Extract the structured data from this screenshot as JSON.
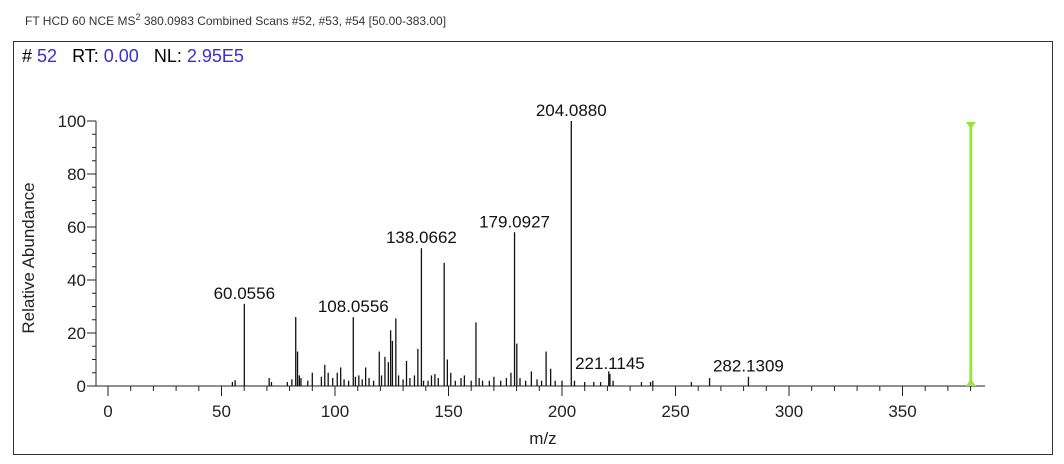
{
  "header": {
    "prefix": "FT HCD 60 NCE MS",
    "superscript": "2",
    "suffix": " 380.0983 Combined Scans #52, #53, #54 [50.00-383.00]"
  },
  "info": {
    "scan_label": "#",
    "scan_value": "52",
    "rt_label": "RT:",
    "rt_value": "0.00",
    "nl_label": "NL:",
    "nl_value": "2.95E5"
  },
  "chart_data": {
    "type": "bar",
    "xlabel": "m/z",
    "ylabel": "Relative Abundance",
    "xlim": [
      -5,
      385
    ],
    "ylim": [
      0,
      100
    ],
    "x_ticks": [
      0,
      50,
      100,
      150,
      200,
      250,
      300,
      350
    ],
    "y_ticks": [
      0,
      20,
      40,
      60,
      80,
      100
    ],
    "precursor_marker": {
      "mz": 380.0983,
      "color": "#99e63a"
    },
    "peaks": [
      {
        "mz": 54.8,
        "intensity": 1.5
      },
      {
        "mz": 56.0,
        "intensity": 2.2
      },
      {
        "mz": 60.0556,
        "intensity": 31,
        "label": "60.0556"
      },
      {
        "mz": 71.0,
        "intensity": 3
      },
      {
        "mz": 72.0,
        "intensity": 1.5
      },
      {
        "mz": 79.0,
        "intensity": 1.5
      },
      {
        "mz": 81.0,
        "intensity": 2.5
      },
      {
        "mz": 82.7,
        "intensity": 26
      },
      {
        "mz": 83.5,
        "intensity": 13
      },
      {
        "mz": 84.3,
        "intensity": 4
      },
      {
        "mz": 85.0,
        "intensity": 3
      },
      {
        "mz": 88.0,
        "intensity": 2
      },
      {
        "mz": 90.0,
        "intensity": 5
      },
      {
        "mz": 94.0,
        "intensity": 3.5
      },
      {
        "mz": 95.5,
        "intensity": 8
      },
      {
        "mz": 97.0,
        "intensity": 5
      },
      {
        "mz": 99.0,
        "intensity": 3
      },
      {
        "mz": 101.0,
        "intensity": 5
      },
      {
        "mz": 102.5,
        "intensity": 7
      },
      {
        "mz": 104.0,
        "intensity": 2.5
      },
      {
        "mz": 106.0,
        "intensity": 2
      },
      {
        "mz": 108.0556,
        "intensity": 26,
        "label": "108.0556"
      },
      {
        "mz": 109.0,
        "intensity": 3.5
      },
      {
        "mz": 110.5,
        "intensity": 4
      },
      {
        "mz": 112.0,
        "intensity": 2.5
      },
      {
        "mz": 113.5,
        "intensity": 7
      },
      {
        "mz": 115.0,
        "intensity": 3
      },
      {
        "mz": 117.0,
        "intensity": 2
      },
      {
        "mz": 119.5,
        "intensity": 13
      },
      {
        "mz": 120.5,
        "intensity": 4
      },
      {
        "mz": 122.0,
        "intensity": 11
      },
      {
        "mz": 123.5,
        "intensity": 9
      },
      {
        "mz": 124.5,
        "intensity": 21
      },
      {
        "mz": 125.3,
        "intensity": 17
      },
      {
        "mz": 126.8,
        "intensity": 25.5
      },
      {
        "mz": 128.0,
        "intensity": 4
      },
      {
        "mz": 130.0,
        "intensity": 2.5
      },
      {
        "mz": 131.5,
        "intensity": 9.5
      },
      {
        "mz": 133.0,
        "intensity": 3
      },
      {
        "mz": 135.0,
        "intensity": 4
      },
      {
        "mz": 136.5,
        "intensity": 14
      },
      {
        "mz": 138.0662,
        "intensity": 52,
        "label": "138.0662"
      },
      {
        "mz": 139.0,
        "intensity": 2
      },
      {
        "mz": 141.0,
        "intensity": 2
      },
      {
        "mz": 142.5,
        "intensity": 4
      },
      {
        "mz": 144.0,
        "intensity": 4.5
      },
      {
        "mz": 145.5,
        "intensity": 3
      },
      {
        "mz": 148.1,
        "intensity": 46.5
      },
      {
        "mz": 149.5,
        "intensity": 10
      },
      {
        "mz": 151.0,
        "intensity": 5
      },
      {
        "mz": 153.0,
        "intensity": 2
      },
      {
        "mz": 155.5,
        "intensity": 3
      },
      {
        "mz": 157.0,
        "intensity": 4
      },
      {
        "mz": 160.0,
        "intensity": 2
      },
      {
        "mz": 162.1,
        "intensity": 24
      },
      {
        "mz": 163.5,
        "intensity": 3
      },
      {
        "mz": 165.0,
        "intensity": 2
      },
      {
        "mz": 168.0,
        "intensity": 2
      },
      {
        "mz": 170.0,
        "intensity": 3.5
      },
      {
        "mz": 173.0,
        "intensity": 2
      },
      {
        "mz": 175.5,
        "intensity": 3
      },
      {
        "mz": 177.5,
        "intensity": 5
      },
      {
        "mz": 179.0927,
        "intensity": 58,
        "label": "179.0927"
      },
      {
        "mz": 180.1,
        "intensity": 16
      },
      {
        "mz": 181.5,
        "intensity": 3
      },
      {
        "mz": 184.0,
        "intensity": 2
      },
      {
        "mz": 186.5,
        "intensity": 5.5
      },
      {
        "mz": 189.0,
        "intensity": 2.5
      },
      {
        "mz": 191.0,
        "intensity": 2
      },
      {
        "mz": 193.0,
        "intensity": 13
      },
      {
        "mz": 195.0,
        "intensity": 6.5
      },
      {
        "mz": 197.0,
        "intensity": 2
      },
      {
        "mz": 200.0,
        "intensity": 2
      },
      {
        "mz": 204.088,
        "intensity": 100,
        "label": "204.0880"
      },
      {
        "mz": 205.5,
        "intensity": 2
      },
      {
        "mz": 210.0,
        "intensity": 1.5
      },
      {
        "mz": 214.0,
        "intensity": 1.5
      },
      {
        "mz": 217.0,
        "intensity": 1.5
      },
      {
        "mz": 220.6,
        "intensity": 5.5
      },
      {
        "mz": 221.1145,
        "intensity": 4.5,
        "label": "221.1145"
      },
      {
        "mz": 222.5,
        "intensity": 2
      },
      {
        "mz": 235.0,
        "intensity": 1.5
      },
      {
        "mz": 239.0,
        "intensity": 1.5
      },
      {
        "mz": 240.0,
        "intensity": 2
      },
      {
        "mz": 257.0,
        "intensity": 1.5
      },
      {
        "mz": 265.0,
        "intensity": 3
      },
      {
        "mz": 282.1309,
        "intensity": 3.5,
        "label": "282.1309"
      }
    ]
  }
}
